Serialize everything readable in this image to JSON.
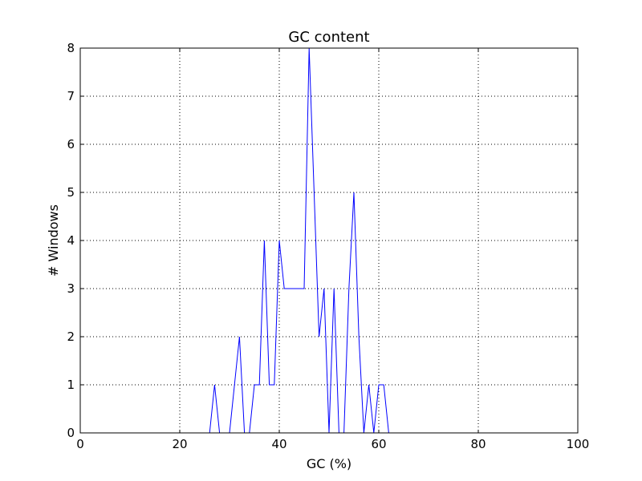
{
  "chart_data": {
    "type": "line",
    "title": "GC content",
    "xlabel": "GC (%)",
    "ylabel": "# Windows",
    "xlim": [
      0,
      100
    ],
    "ylim": [
      0,
      8
    ],
    "xticks": [
      "0",
      "20",
      "40",
      "60",
      "80",
      "100"
    ],
    "yticks": [
      "0",
      "1",
      "2",
      "3",
      "4",
      "5",
      "6",
      "7",
      "8"
    ],
    "grid": true,
    "legend": "none",
    "series": [
      {
        "color": "#0000ff",
        "x": [
          0,
          26,
          27,
          28,
          29,
          30,
          31,
          32,
          33,
          34,
          35,
          36,
          37,
          38,
          39,
          40,
          41,
          42,
          43,
          44,
          45,
          46,
          47,
          48,
          49,
          50,
          51,
          52,
          53,
          54,
          55,
          56,
          57,
          58,
          59,
          60,
          61,
          62,
          100
        ],
        "y": [
          0,
          0,
          1,
          0,
          0,
          0,
          1,
          2,
          0,
          0,
          1,
          1,
          4,
          1,
          1,
          4,
          3,
          3,
          3,
          3,
          3,
          8,
          5,
          2,
          3,
          0,
          3,
          0,
          0,
          3,
          5,
          2,
          0,
          1,
          0,
          1,
          1,
          0,
          0
        ]
      }
    ]
  }
}
